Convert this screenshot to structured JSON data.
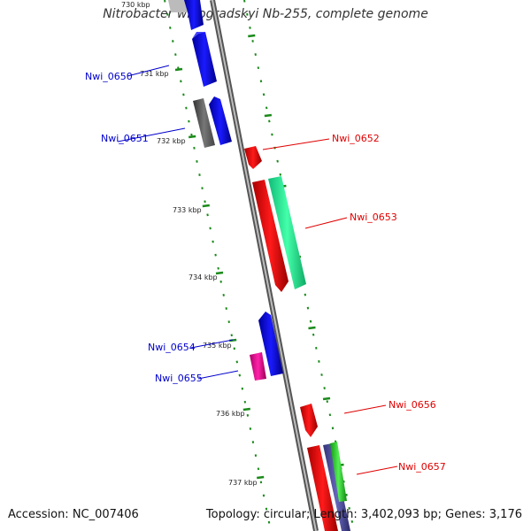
{
  "title": "Nitrobacter winogradskyi Nb-255, complete genome",
  "footer": {
    "accession": "Accession: NC_007406",
    "summary": "Topology: circular; Length: 3,402,093 bp; Genes: 3,176"
  },
  "scale": {
    "partial_label": "730 kbp",
    "ticks": [
      "731 kbp",
      "732 kbp",
      "733 kbp",
      "734 kbp",
      "735 kbp",
      "736 kbp",
      "737 kbp"
    ]
  },
  "gene_labels": {
    "nwi_0650": "Nwi_0650",
    "nwi_0651": "Nwi_0651",
    "nwi_0652": "Nwi_0652",
    "nwi_0653": "Nwi_0653",
    "nwi_0654": "Nwi_0654",
    "nwi_0655": "Nwi_0655",
    "nwi_0656": "Nwi_0656",
    "nwi_0657": "Nwi_0657"
  },
  "colors": {
    "forward_label": "#e00000",
    "reverse_label": "#0000cc",
    "backbone": "#8a8a8a",
    "scale_tick": "#1a8a1a",
    "blue_gene": "#0000ee",
    "gray_gene": "#666666",
    "red_gene": "#ee0000",
    "teal_gene": "#22ee99",
    "magenta_gene": "#ee1199",
    "indigo_gene": "#5555aa",
    "green_gene": "#33cc33"
  }
}
